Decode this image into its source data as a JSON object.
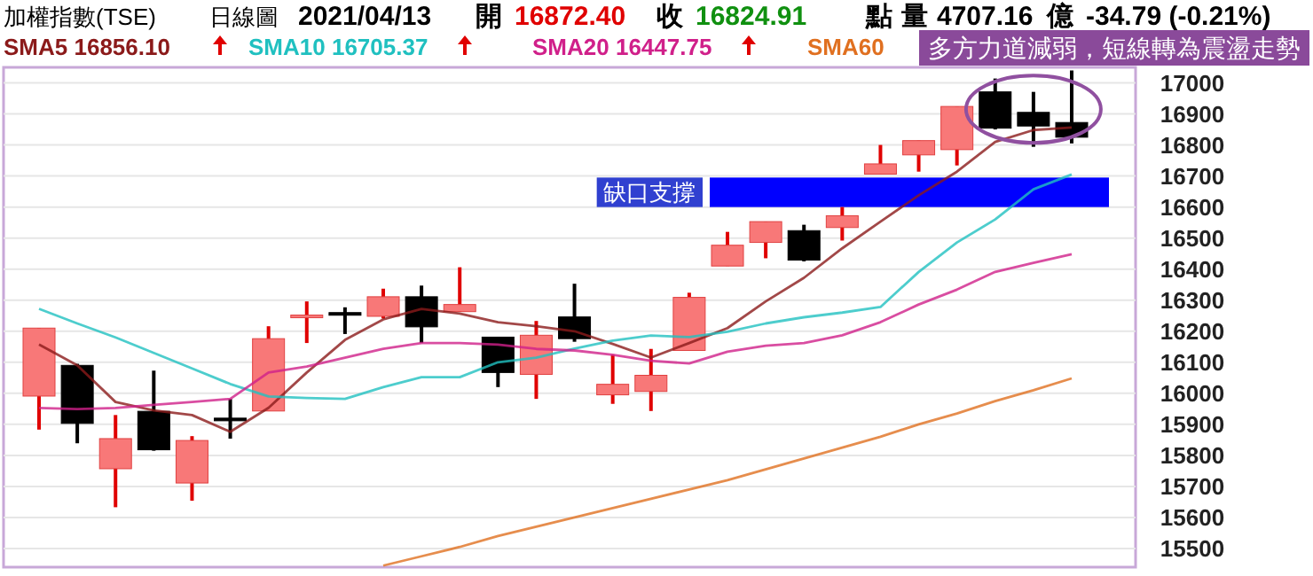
{
  "chart_data": {
    "type": "candlestick",
    "subtitle": "多方力道減弱，短線轉為震盪走勢",
    "annotations": [
      "加權指數(TSE)",
      "日線圖",
      "2021/04/13",
      "開",
      "16872.40",
      "收",
      "16824.91",
      "點",
      "量",
      "4707.16",
      "億",
      "-34.79 (-0.21%)"
    ],
    "categories": [
      null,
      null,
      null,
      null,
      null,
      null,
      null,
      null,
      null,
      null,
      null,
      null,
      null,
      null,
      null,
      null,
      null,
      null,
      null,
      null,
      null,
      null,
      null,
      null,
      null,
      null,
      null,
      null
    ],
    "ohlc": [
      [
        15991,
        16210,
        15883,
        16210
      ],
      [
        16090,
        16095,
        15839,
        15903
      ],
      [
        15757,
        15930,
        15633,
        15854
      ],
      [
        15942,
        16073,
        15815,
        15818
      ],
      [
        15711,
        15862,
        15654,
        15848
      ],
      [
        15920,
        15982,
        15854,
        15912
      ],
      [
        15943,
        16216,
        15943,
        16176
      ],
      [
        16245,
        16296,
        16162,
        16252
      ],
      [
        16260,
        16277,
        16191,
        16254
      ],
      [
        16248,
        16337,
        16241,
        16311
      ],
      [
        16311,
        16347,
        16162,
        16214
      ],
      [
        16263,
        16406,
        16263,
        16286
      ],
      [
        16181,
        16181,
        16020,
        16067
      ],
      [
        16061,
        16233,
        15982,
        16187
      ],
      [
        16246,
        16353,
        16166,
        16176
      ],
      [
        15995,
        16124,
        15966,
        16029
      ],
      [
        16006,
        16143,
        15943,
        16058
      ],
      [
        16138,
        16324,
        16138,
        16309
      ],
      [
        16410,
        16520,
        16410,
        16477
      ],
      [
        16486,
        16553,
        16435,
        16553
      ],
      [
        16524,
        16543,
        16425,
        16429
      ],
      [
        16534,
        16600,
        16492,
        16572
      ],
      [
        16706,
        16800,
        16706,
        16739
      ],
      [
        16768,
        16814,
        16714,
        16814
      ],
      [
        16785,
        16924,
        16734,
        16924
      ],
      [
        16971,
        17014,
        16850,
        16854
      ],
      [
        16905,
        16971,
        16794,
        16861
      ],
      [
        16872.4,
        17040,
        16805,
        16824.91
      ]
    ],
    "series": [
      {
        "type": "line",
        "name": "SMA5 16856.10",
        "color": "#8b1a1a",
        "values": [
          16157,
          16090,
          15972,
          15945,
          15930,
          15876,
          15953,
          16067,
          16172,
          16238,
          16272,
          16257,
          16229,
          16216,
          16200,
          16159,
          16115,
          16162,
          16210,
          16296,
          16372,
          16467,
          16553,
          16638,
          16714,
          16810,
          16848,
          16856
        ]
      },
      {
        "type": "line",
        "name": "SMA10 16705.37",
        "color": "#20c0c0",
        "values": [
          16272,
          16225,
          16180,
          16130,
          16080,
          16030,
          15990,
          15985,
          15982,
          16020,
          16052,
          16052,
          16100,
          16115,
          16144,
          16170,
          16186,
          16181,
          16198,
          16225,
          16245,
          16260,
          16278,
          16391,
          16486,
          16560,
          16657,
          16705
        ]
      },
      {
        "type": "line",
        "name": "SMA20 16447.75",
        "color": "#d0208a",
        "values": [
          15953,
          15949,
          15953,
          15963,
          15972,
          15982,
          16067,
          16086,
          16115,
          16143,
          16162,
          16162,
          16157,
          16143,
          16138,
          16124,
          16105,
          16096,
          16134,
          16153,
          16162,
          16187,
          16229,
          16286,
          16334,
          16391,
          16420,
          16448
        ]
      },
      {
        "type": "line",
        "name": "SMA60",
        "color": "#e07020",
        "values": [
          null,
          null,
          null,
          null,
          null,
          null,
          null,
          null,
          null,
          15445,
          15475,
          15505,
          15540,
          15570,
          15600,
          15630,
          15660,
          15690,
          15720,
          15755,
          15790,
          15825,
          15860,
          15900,
          15935,
          15975,
          16010,
          16048
        ]
      }
    ],
    "bands": [
      {
        "axis": "y",
        "from": 16600,
        "to": 16695,
        "label": "缺口支撐",
        "color": "#0000ff"
      }
    ],
    "ylim": [
      15440,
      17050
    ],
    "yticks": [
      15500,
      15600,
      15700,
      15800,
      15900,
      16000,
      16100,
      16200,
      16300,
      16400,
      16500,
      16600,
      16700,
      16800,
      16900,
      17000
    ],
    "grid": "y",
    "legend": "top left",
    "line_style": "solid"
  }
}
